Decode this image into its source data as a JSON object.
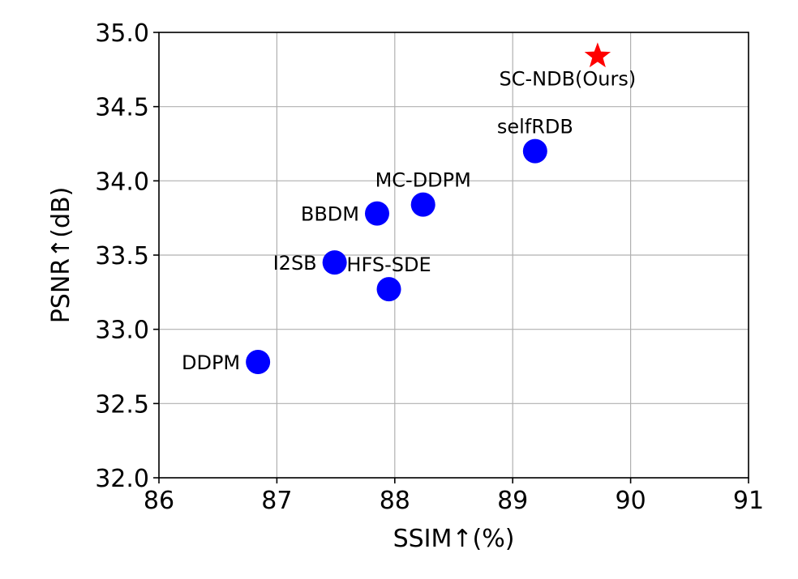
{
  "chart_data": {
    "type": "scatter",
    "title": "",
    "xlabel": "SSIM↑(%)",
    "ylabel": "PSNR↑(dB)",
    "xlim": [
      86,
      91
    ],
    "ylim": [
      32.0,
      35.0
    ],
    "xticks": [
      86,
      87,
      88,
      89,
      90,
      91
    ],
    "yticks": [
      32.0,
      32.5,
      33.0,
      33.5,
      34.0,
      34.5,
      35.0
    ],
    "xtick_labels": [
      "86",
      "87",
      "88",
      "89",
      "90",
      "91"
    ],
    "ytick_labels": [
      "32.0",
      "32.5",
      "33.0",
      "33.5",
      "34.0",
      "34.5",
      "35.0"
    ],
    "grid": true,
    "points": [
      {
        "label": "DDPM",
        "x": 86.84,
        "y": 32.78,
        "marker": "circle",
        "color": "#0000ff",
        "label_side": "left"
      },
      {
        "label": "I2SB",
        "x": 87.49,
        "y": 33.45,
        "marker": "circle",
        "color": "#0000ff",
        "label_side": "left"
      },
      {
        "label": "BBDM",
        "x": 87.85,
        "y": 33.78,
        "marker": "circle",
        "color": "#0000ff",
        "label_side": "left"
      },
      {
        "label": "HFS-SDE",
        "x": 87.95,
        "y": 33.27,
        "marker": "circle",
        "color": "#0000ff",
        "label_side": "above"
      },
      {
        "label": "MC-DDPM",
        "x": 88.24,
        "y": 33.84,
        "marker": "circle",
        "color": "#0000ff",
        "label_side": "above"
      },
      {
        "label": "selfRDB",
        "x": 89.19,
        "y": 34.2,
        "marker": "circle",
        "color": "#0000ff",
        "label_side": "above"
      },
      {
        "label": "SC-NDB(Ours)",
        "x": 89.72,
        "y": 34.84,
        "marker": "star",
        "color": "#ff0000",
        "label_side": "below"
      }
    ]
  }
}
